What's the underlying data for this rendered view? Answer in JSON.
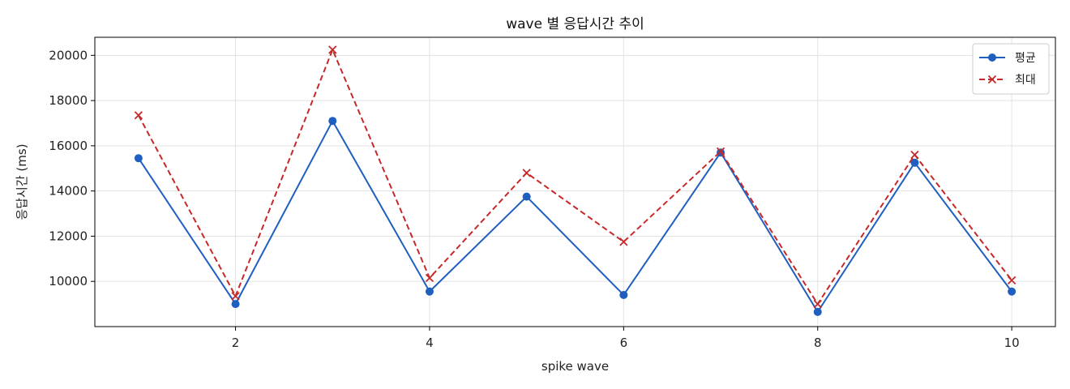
{
  "chart_data": {
    "type": "line",
    "title": "wave 별 응답시간 추이",
    "xlabel": "spike wave",
    "ylabel": "응답시간 (ms)",
    "xlim": [
      0.55,
      10.45
    ],
    "ylim": [
      8000,
      20800
    ],
    "xticks": [
      2,
      4,
      6,
      8,
      10
    ],
    "yticks": [
      10000,
      12000,
      14000,
      16000,
      18000,
      20000
    ],
    "grid": true,
    "legend_position": "top-right",
    "x": [
      1,
      2,
      3,
      4,
      5,
      6,
      7,
      8,
      9,
      10
    ],
    "series": [
      {
        "name": "평균",
        "color": "#1f5fbf",
        "line_style": "solid",
        "marker": "circle",
        "values": [
          15450,
          9000,
          17100,
          9550,
          13750,
          9400,
          15700,
          8650,
          15250,
          9550
        ]
      },
      {
        "name": "최대",
        "color": "#c62828",
        "line_style": "dashed",
        "marker": "x",
        "values": [
          17350,
          9350,
          20250,
          10150,
          14800,
          11750,
          15750,
          9000,
          15600,
          10050
        ]
      }
    ]
  }
}
